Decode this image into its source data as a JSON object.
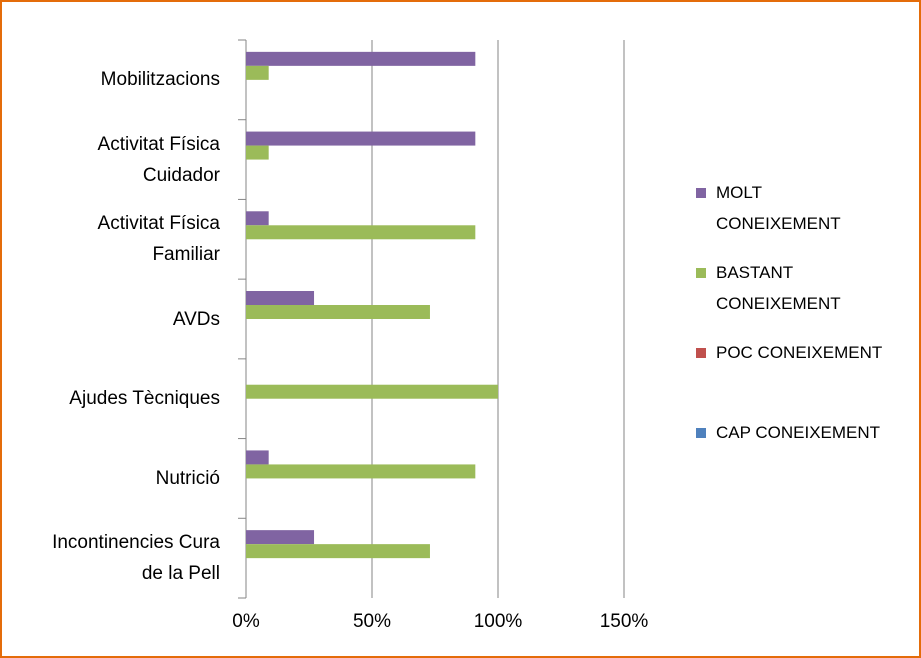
{
  "chart_data": {
    "type": "bar",
    "orientation": "horizontal",
    "categories": [
      "Mobilitzacions",
      "Activitat Física Cuidador",
      "Activitat Física Familiar",
      "AVDs",
      "Ajudes Tècniques",
      "Nutrició",
      "Incontinencies Cura de la Pell"
    ],
    "series": [
      {
        "name": "MOLT CONEIXEMENT",
        "color": "#8064a2",
        "values": [
          91,
          91,
          9,
          27,
          0,
          9,
          27
        ]
      },
      {
        "name": "BASTANT CONEIXEMENT",
        "color": "#9bbb59",
        "values": [
          9,
          9,
          91,
          73,
          100,
          91,
          73
        ]
      },
      {
        "name": "POC CONEIXEMENT",
        "color": "#c0504d",
        "values": [
          0,
          0,
          0,
          0,
          0,
          0,
          0
        ]
      },
      {
        "name": "CAP CONEIXEMENT",
        "color": "#4f81bd",
        "values": [
          0,
          0,
          0,
          0,
          0,
          0,
          0
        ]
      }
    ],
    "xlim": [
      0,
      150
    ],
    "xticks": [
      {
        "value": 0,
        "label": "0%"
      },
      {
        "value": 50,
        "label": "50%"
      },
      {
        "value": 100,
        "label": "100%"
      },
      {
        "value": 150,
        "label": "150%"
      }
    ],
    "grid": true,
    "legend": "right"
  }
}
